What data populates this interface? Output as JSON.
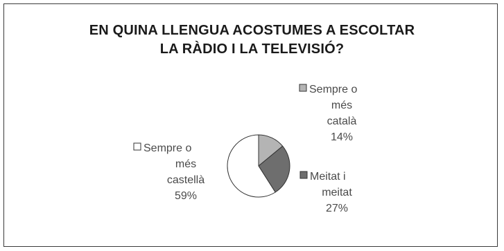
{
  "title_lines": [
    "EN QUINA LLENGUA ACOSTUMES A ESCOLTAR",
    "LA RÀDIO I LA TELEVISIÓ?"
  ],
  "chart_data": {
    "type": "pie",
    "title": "EN QUINA LLENGUA ACOSTUMES A ESCOLTAR LA RÀDIO I LA TELEVISIÓ?",
    "slices": [
      {
        "name": "Sempre o més català",
        "value": 14,
        "value_label": "14%",
        "color": "#b4b4b4",
        "label_lines": [
          "Sempre o",
          "més",
          "català",
          "14%"
        ]
      },
      {
        "name": "Meitat i meitat",
        "value": 27,
        "value_label": "27%",
        "color": "#6e6e6e",
        "label_lines": [
          "Meitat i",
          "meitat",
          "27%"
        ]
      },
      {
        "name": "Sempre o més castellà",
        "value": 59,
        "value_label": "59%",
        "color": "#ffffff",
        "label_lines": [
          "Sempre o",
          "més",
          "castellà",
          "59%"
        ]
      }
    ],
    "legend": "inline labels beside pie",
    "grid": false
  }
}
